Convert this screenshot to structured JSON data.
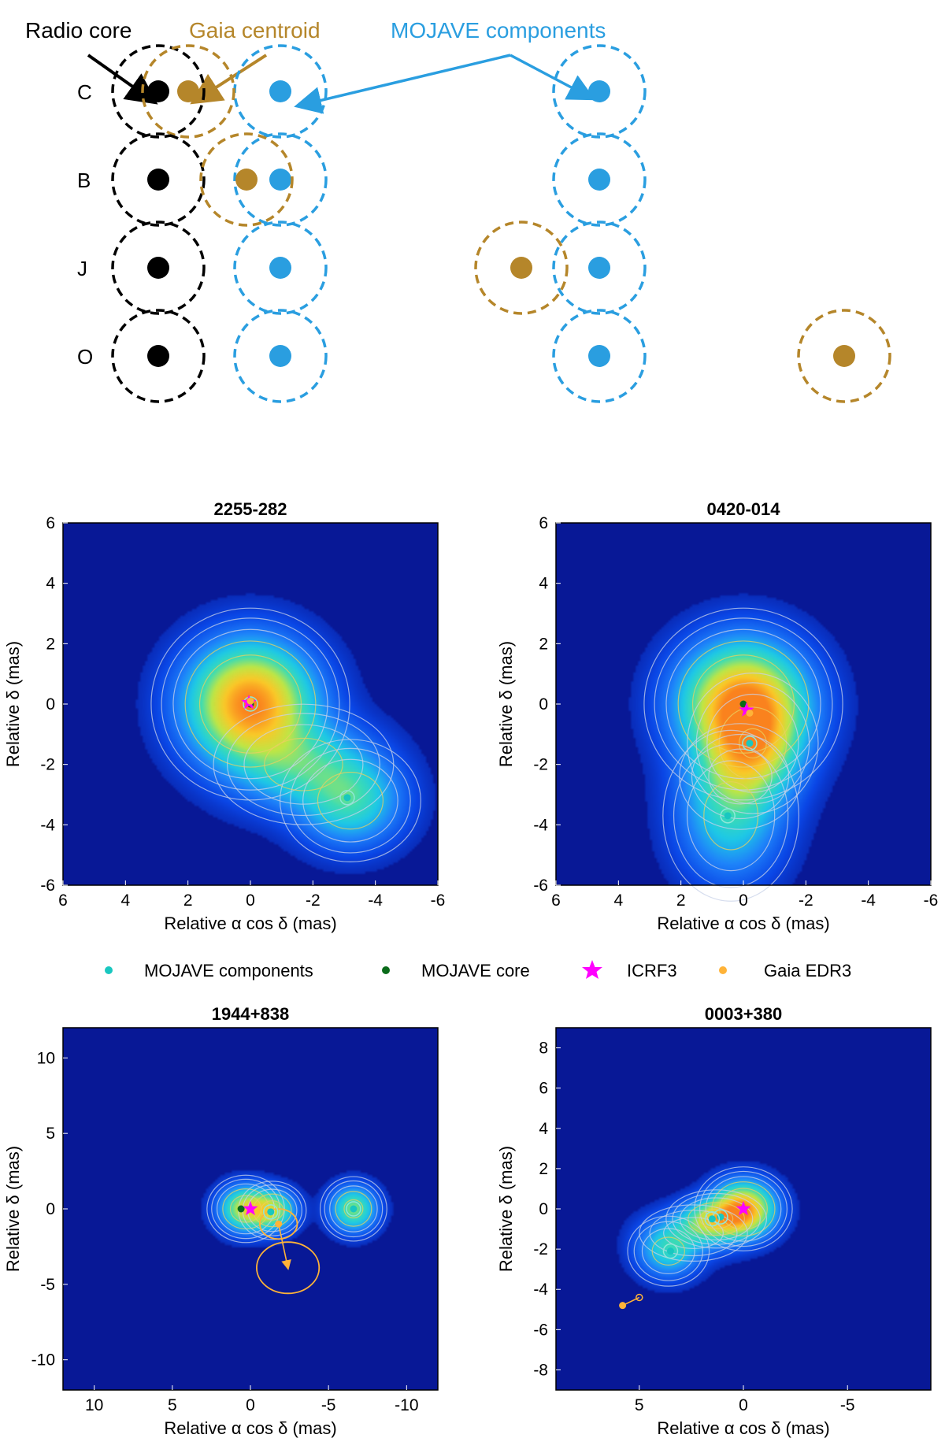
{
  "schematic": {
    "labels": {
      "radio_core": "Radio core",
      "gaia_centroid": "Gaia centroid",
      "mojave_components": "MOJAVE components"
    },
    "rows": [
      {
        "label": "C",
        "gaia_slot": "near-core"
      },
      {
        "label": "B",
        "gaia_slot": "near-first-component"
      },
      {
        "label": "J",
        "gaia_slot": "between-components"
      },
      {
        "label": "O",
        "gaia_slot": "beyond-second-component"
      }
    ],
    "colors": {
      "core": "#000000",
      "gaia": "#b5862a",
      "mojave": "#2a9ee0"
    }
  },
  "chart_data": [
    {
      "type": "heatmap",
      "title": "2255-282",
      "xlabel": "Relative α cos δ (mas)",
      "ylabel": "Relative δ (mas)",
      "xlim": [
        6,
        -6
      ],
      "ylim": [
        -6,
        6
      ],
      "xticks": [
        6,
        4,
        2,
        0,
        -2,
        -4,
        -6
      ],
      "yticks": [
        6,
        4,
        2,
        0,
        -2,
        -4,
        -6
      ],
      "mojave_components": [
        {
          "x": 0,
          "y": 0
        },
        {
          "x": -3.1,
          "y": -3.1
        }
      ],
      "mojave_core": {
        "x": 0,
        "y": 0
      },
      "icrf3": {
        "x": 0.05,
        "y": 0.05
      },
      "gaia_edr3": {
        "x": 0,
        "y": 0.1
      },
      "blobs": [
        {
          "x": 0,
          "y": 0,
          "sx": 1.2,
          "sy": 1.2,
          "a": 1.0
        },
        {
          "x": -1.7,
          "y": -2.0,
          "sx": 1.3,
          "sy": 0.9,
          "a": 0.35
        },
        {
          "x": -3.2,
          "y": -3.2,
          "sx": 1.0,
          "sy": 0.9,
          "a": 0.38
        }
      ]
    },
    {
      "type": "heatmap",
      "title": "0420-014",
      "xlabel": "Relative α cos δ (mas)",
      "ylabel": "Relative δ (mas)",
      "xlim": [
        6,
        -6
      ],
      "ylim": [
        -6,
        6
      ],
      "xticks": [
        6,
        4,
        2,
        0,
        -2,
        -4,
        -6
      ],
      "yticks": [
        6,
        4,
        2,
        0,
        -2,
        -4,
        -6
      ],
      "mojave_components": [
        {
          "x": -0.2,
          "y": -1.3
        },
        {
          "x": 0.5,
          "y": -3.7
        }
      ],
      "mojave_core": {
        "x": 0,
        "y": 0
      },
      "icrf3": {
        "x": -0.1,
        "y": -0.2
      },
      "gaia_edr3": {
        "x": -0.2,
        "y": -0.3
      },
      "blobs": [
        {
          "x": 0,
          "y": 0,
          "sx": 1.2,
          "sy": 1.2,
          "a": 1.0
        },
        {
          "x": -0.3,
          "y": -1.3,
          "sx": 0.9,
          "sy": 1.0,
          "a": 0.45
        },
        {
          "x": 0.4,
          "y": -3.7,
          "sx": 1.0,
          "sy": 1.3,
          "a": 0.32
        },
        {
          "x": 0.1,
          "y": -2.4,
          "sx": 1.0,
          "sy": 0.9,
          "a": 0.2
        }
      ]
    },
    {
      "type": "heatmap",
      "title": "1944+838",
      "xlabel": "Relative α cos δ (mas)",
      "ylabel": "Relative δ (mas)",
      "xlim": [
        12,
        -12
      ],
      "ylim": [
        -12,
        12
      ],
      "xticks": [
        10,
        5,
        0,
        -5,
        -10
      ],
      "yticks": [
        10,
        5,
        0,
        -5,
        -10
      ],
      "mojave_components": [
        {
          "x": -1.3,
          "y": -0.2
        },
        {
          "x": -6.6,
          "y": 0
        }
      ],
      "mojave_core": {
        "x": 0.6,
        "y": 0
      },
      "icrf3": {
        "x": 0,
        "y": 0
      },
      "gaia_edr3": {
        "x": -1.8,
        "y": -1.0
      },
      "gaia_ellipses": [
        {
          "x": -1.8,
          "y": -1.0,
          "rx": 1.2,
          "ry": 1.0
        },
        {
          "x": -2.4,
          "y": -3.9,
          "rx": 2.0,
          "ry": 1.7
        }
      ],
      "blobs": [
        {
          "x": 0.3,
          "y": 0,
          "sx": 1.0,
          "sy": 0.9,
          "a": 0.65
        },
        {
          "x": -1.4,
          "y": -0.1,
          "sx": 0.9,
          "sy": 0.8,
          "a": 0.55
        },
        {
          "x": -6.6,
          "y": 0,
          "sx": 0.9,
          "sy": 0.9,
          "a": 0.5
        }
      ]
    },
    {
      "type": "heatmap",
      "title": "0003+380",
      "xlabel": "Relative α cos δ (mas)",
      "ylabel": "Relative δ (mas)",
      "xlim": [
        9,
        -9
      ],
      "ylim": [
        -9,
        9
      ],
      "xticks": [
        5,
        0,
        -5
      ],
      "yticks": [
        8,
        6,
        4,
        2,
        0,
        -2,
        -4,
        -6,
        -8
      ],
      "mojave_components": [
        {
          "x": 1.1,
          "y": -0.4
        },
        {
          "x": 1.5,
          "y": -0.5
        },
        {
          "x": 3.5,
          "y": -2.1
        }
      ],
      "mojave_core": {
        "x": 0,
        "y": 0
      },
      "icrf3": {
        "x": 0,
        "y": 0
      },
      "gaia_edr3": {
        "x": 5.8,
        "y": -4.8
      },
      "gaia_open": {
        "x": 5.0,
        "y": -4.4
      },
      "blobs": [
        {
          "x": 0,
          "y": 0,
          "sx": 0.9,
          "sy": 0.8,
          "a": 0.9
        },
        {
          "x": 1.3,
          "y": -0.5,
          "sx": 1.0,
          "sy": 0.6,
          "a": 0.55
        },
        {
          "x": 2.4,
          "y": -1.2,
          "sx": 1.3,
          "sy": 0.7,
          "a": 0.22
        },
        {
          "x": 3.6,
          "y": -2.1,
          "sx": 0.9,
          "sy": 0.8,
          "a": 0.32
        }
      ]
    }
  ],
  "legend": [
    {
      "label": "MOJAVE components",
      "color": "#19c7c0",
      "marker": "dot"
    },
    {
      "label": "MOJAVE core",
      "color": "#0a6b1a",
      "marker": "dot"
    },
    {
      "label": "ICRF3",
      "color": "#ff00ff",
      "marker": "star"
    },
    {
      "label": "Gaia EDR3",
      "color": "#ffb338",
      "marker": "dot"
    }
  ]
}
